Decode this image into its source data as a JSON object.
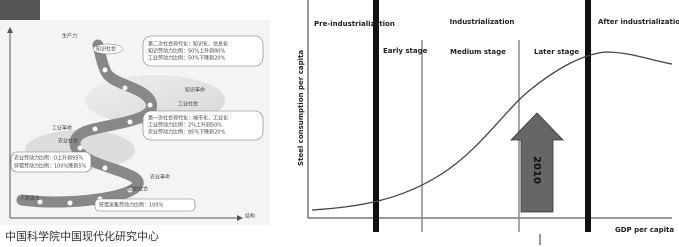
{
  "left_diagram": {
    "axis_y": "生产力",
    "axis_x": "结构",
    "stages": [
      "知识社会",
      "知识革命",
      "工业社会",
      "工业革命",
      "农业社会",
      "农业革命",
      "原始社会",
      "人类诞生"
    ],
    "boxes": [
      [
        "第二次社会现代化：知识化，信息化",
        "知识劳动力比例：50%上升到80%",
        "工业劳动力比例：50%下降到20%"
      ],
      [
        "第一次社会现代化：城市化，工业化",
        "工业劳动力比例：2%上升到50%",
        "农业劳动力比例：95%下降到20%"
      ],
      [
        "农业劳动力比例：0上升到95%",
        "狩猎劳动力比例：100%降到5%"
      ],
      [
        "狩猎采集劳动力比例：100%"
      ]
    ],
    "caption": "中国科学院中国现代化研究中心"
  },
  "right_diagram": {
    "phases": [
      "Pre-industrialization",
      "Industrialization",
      "After industrialization"
    ],
    "stages": [
      "Early stage",
      "Medium stage",
      "Later stage"
    ],
    "y_label": "Steel consumption per capita",
    "x_label": "GDP per capita",
    "marker": "2010"
  }
}
